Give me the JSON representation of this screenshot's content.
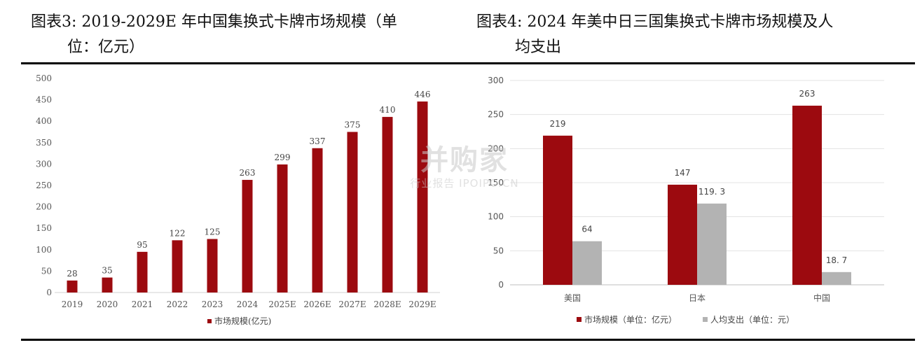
{
  "titles": {
    "left": {
      "line1": "图表3:   2019-2029E 年中国集换式卡牌市场规模（单",
      "line2": "位：亿元）"
    },
    "right": {
      "line1": "图表4:   2024 年美中日三国集换式卡牌市场规模及人",
      "line2": "均支出"
    }
  },
  "watermark": {
    "brand": "并购家",
    "sub": "行业报告 IPOIPO.CN"
  },
  "colors": {
    "dark_red": "#9C0A0F",
    "gray": "#B3B3B3",
    "grid": "#E3E3E3"
  },
  "chart_data": [
    {
      "type": "bar",
      "categories": [
        "2019",
        "2020",
        "2021",
        "2022",
        "2023",
        "2024",
        "2025E",
        "2026E",
        "2027E",
        "2028E",
        "2029E"
      ],
      "series": [
        {
          "name": "市场规模(亿元)",
          "values": [
            28,
            35,
            95,
            122,
            125,
            263,
            299,
            337,
            375,
            410,
            446
          ]
        }
      ],
      "yticks": [
        0,
        50,
        100,
        150,
        200,
        250,
        300,
        350,
        400,
        450,
        500
      ],
      "ylim": [
        0,
        500
      ],
      "grid": false,
      "legend": "bottom"
    },
    {
      "type": "bar",
      "categories": [
        "美国",
        "日本",
        "中国"
      ],
      "series": [
        {
          "name": "市场规模（单位：亿元）",
          "values": [
            219,
            147,
            263
          ],
          "labels": [
            "219",
            "147",
            "263"
          ]
        },
        {
          "name": "人均支出（单位：元）",
          "values": [
            64,
            119.3,
            18.7
          ],
          "labels": [
            "64",
            "119. 3",
            "18. 7"
          ]
        }
      ],
      "yticks": [
        0,
        50,
        100,
        150,
        200,
        250,
        300
      ],
      "ylim": [
        0,
        300
      ],
      "grid": true,
      "legend": "bottom"
    }
  ]
}
